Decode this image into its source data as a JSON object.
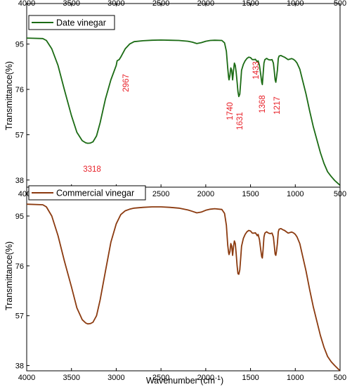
{
  "chart_data": [
    {
      "type": "line",
      "panel": "top",
      "xlabel": "Wavenumber (cm-1)",
      "ylabel": "Transmittance(%)",
      "x_ticks": [
        4000,
        3500,
        3000,
        2500,
        2000,
        1500,
        1000,
        500
      ],
      "xlim": [
        4000,
        500
      ],
      "ylim": [
        35,
        112
      ],
      "y_ticks": [
        38,
        57,
        76,
        95
      ],
      "x_reversed": true,
      "legend_position": "top-left",
      "series": [
        {
          "name": "Date vinegar",
          "color": "#1b6b14",
          "x": [
            4000,
            3820,
            3780,
            3720,
            3650,
            3580,
            3500,
            3440,
            3380,
            3340,
            3318,
            3290,
            3260,
            3220,
            3180,
            3120,
            3060,
            3000,
            2990,
            2967,
            2950,
            2900,
            2850,
            2800,
            2700,
            2600,
            2500,
            2400,
            2300,
            2200,
            2150,
            2100,
            2050,
            2000,
            1950,
            1900,
            1820,
            1790,
            1770,
            1755,
            1745,
            1740,
            1730,
            1720,
            1710,
            1700,
            1690,
            1680,
            1670,
            1660,
            1650,
            1640,
            1631,
            1620,
            1610,
            1600,
            1580,
            1560,
            1540,
            1520,
            1500,
            1480,
            1460,
            1445,
            1440,
            1433,
            1425,
            1415,
            1400,
            1385,
            1375,
            1368,
            1360,
            1350,
            1340,
            1320,
            1300,
            1280,
            1260,
            1245,
            1235,
            1225,
            1217,
            1210,
            1200,
            1190,
            1180,
            1160,
            1140,
            1120,
            1100,
            1080,
            1060,
            1040,
            1020,
            1000,
            980,
            950,
            920,
            880,
            840,
            800,
            760,
            720,
            680,
            640,
            600,
            560,
            530,
            500
          ],
          "y": [
            97.5,
            97.3,
            96.5,
            93,
            86,
            76,
            65,
            58,
            54.5,
            53.6,
            53.4,
            53.5,
            54,
            56.5,
            62,
            72,
            80,
            86,
            88,
            88.5,
            89.5,
            93,
            95,
            96,
            96.4,
            96.6,
            96.7,
            96.6,
            96.5,
            96.2,
            95.8,
            95.2,
            95.6,
            96.2,
            96.5,
            96.6,
            96.5,
            95.5,
            92,
            85,
            81,
            80,
            82,
            85,
            84,
            80,
            84,
            87,
            86,
            83,
            79,
            75,
            73,
            74,
            79,
            84,
            86.5,
            88,
            89,
            89.5,
            89.3,
            88.5,
            88.5,
            88.6,
            88.3,
            88,
            87.5,
            88,
            86,
            82,
            79,
            78,
            82,
            87,
            88.5,
            89,
            88.5,
            88.3,
            88.5,
            87,
            84,
            80,
            79,
            81,
            84,
            89,
            90,
            90.2,
            89.8,
            89.5,
            89,
            88.5,
            88.7,
            88.9,
            88.6,
            88,
            87,
            84.5,
            80,
            74,
            67,
            60.5,
            55,
            49.5,
            45,
            41.5,
            39.5,
            37.8,
            36.8,
            35.8
          ]
        }
      ],
      "annotations": [
        "3318",
        "2967",
        "1740",
        "1631",
        "1433",
        "1368",
        "1217"
      ]
    },
    {
      "type": "line",
      "panel": "bottom",
      "xlabel": "Wavenumber (cm-1)",
      "ylabel": "Transmittance(%)",
      "x_ticks": [
        4000,
        3500,
        3000,
        2500,
        2000,
        1500,
        1000,
        500
      ],
      "xlim": [
        4000,
        500
      ],
      "ylim": [
        36,
        106
      ],
      "y_ticks": [
        38,
        57,
        76,
        95
      ],
      "x_reversed": true,
      "legend_position": "top-left",
      "series": [
        {
          "name": "Commercial vinegar",
          "color": "#8b3a0f",
          "x": [
            4000,
            3820,
            3780,
            3720,
            3650,
            3580,
            3500,
            3440,
            3380,
            3340,
            3318,
            3290,
            3260,
            3220,
            3180,
            3120,
            3060,
            3000,
            2950,
            2900,
            2850,
            2800,
            2700,
            2600,
            2500,
            2400,
            2300,
            2200,
            2150,
            2100,
            2050,
            2000,
            1950,
            1900,
            1820,
            1790,
            1770,
            1755,
            1745,
            1740,
            1730,
            1720,
            1710,
            1700,
            1690,
            1680,
            1670,
            1660,
            1650,
            1640,
            1631,
            1620,
            1610,
            1600,
            1580,
            1560,
            1540,
            1520,
            1500,
            1480,
            1460,
            1445,
            1440,
            1433,
            1425,
            1415,
            1400,
            1385,
            1375,
            1368,
            1360,
            1350,
            1340,
            1320,
            1300,
            1280,
            1260,
            1245,
            1235,
            1225,
            1217,
            1210,
            1200,
            1190,
            1180,
            1160,
            1140,
            1120,
            1100,
            1080,
            1060,
            1040,
            1020,
            1000,
            980,
            950,
            920,
            880,
            840,
            800,
            760,
            720,
            680,
            640,
            600,
            560,
            530,
            500
          ],
          "y": [
            99.5,
            99.3,
            98.5,
            95,
            87.5,
            78,
            68,
            60,
            55.5,
            54.2,
            53.9,
            54,
            54.5,
            57,
            63,
            74,
            85,
            92,
            95.5,
            97,
            97.6,
            98,
            98.3,
            98.5,
            98.5,
            98.3,
            98,
            97.3,
            96.8,
            96.2,
            96.5,
            97.2,
            97.6,
            97.8,
            97.5,
            96,
            91.5,
            84,
            81,
            80.3,
            81.5,
            84.5,
            83.5,
            80,
            83.5,
            85.5,
            84.5,
            80.5,
            76,
            73,
            72.8,
            74.5,
            79,
            83.5,
            86.5,
            88,
            89,
            89.5,
            89.3,
            88.5,
            88.5,
            88.6,
            88.3,
            88,
            87.5,
            88,
            86,
            82,
            79.5,
            79,
            82,
            87,
            88.5,
            89,
            88.5,
            88.3,
            88.5,
            87,
            84,
            80.5,
            80,
            81.5,
            84.5,
            89,
            90,
            90.2,
            89.8,
            89.5,
            89,
            88.5,
            88.7,
            88.9,
            88.6,
            88,
            87,
            84.5,
            80,
            74,
            67,
            60.5,
            55,
            49.5,
            45,
            41.5,
            39.5,
            38,
            37,
            36
          ]
        }
      ]
    }
  ],
  "labels": {
    "ylabel_top": "Transmittance(%)",
    "ylabel_bottom": "Transmittance(%)",
    "xlabel_main": "Wavenumber (cm",
    "xlabel_sup": "-1",
    "xlabel_close": ")",
    "legend_top": "Date vinegar",
    "legend_bottom": "Commercial vinegar"
  }
}
